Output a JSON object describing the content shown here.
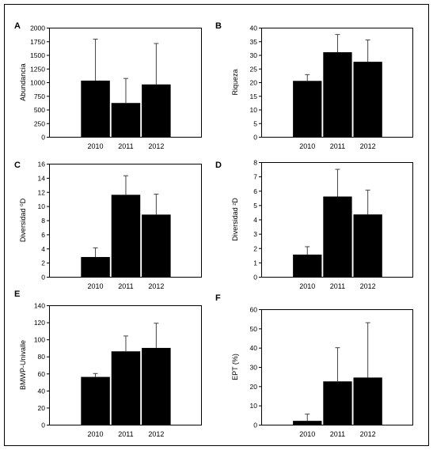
{
  "chart_data": [
    {
      "panel": "A",
      "type": "bar",
      "categories": [
        "2010",
        "2011",
        "2012"
      ],
      "values": [
        1030,
        620,
        960
      ],
      "errors": [
        760,
        450,
        750
      ],
      "ylabel": "Abundancia",
      "xlabel": "",
      "ylim": [
        0,
        2000
      ],
      "yticks": [
        "0",
        "250",
        "500",
        "750",
        "1000",
        "1250",
        "1500",
        "1750",
        "2000"
      ]
    },
    {
      "panel": "B",
      "type": "bar",
      "categories": [
        "2010",
        "2011",
        "2012"
      ],
      "values": [
        20.5,
        31,
        27.5
      ],
      "errors": [
        2.3,
        6.5,
        8
      ],
      "ylabel": "Riqueza",
      "xlabel": "",
      "ylim": [
        0,
        40
      ],
      "yticks": [
        "0",
        "5",
        "10",
        "15",
        "20",
        "25",
        "30",
        "35",
        "40"
      ]
    },
    {
      "panel": "C",
      "type": "bar",
      "categories": [
        "2010",
        "2011",
        "2012"
      ],
      "values": [
        2.8,
        11.6,
        8.8
      ],
      "errors": [
        1.3,
        2.7,
        2.9
      ],
      "ylabel": "Diversidad ⁰D",
      "xlabel": "",
      "ylim": [
        0,
        16
      ],
      "yticks": [
        "0",
        "2",
        "4",
        "6",
        "8",
        "10",
        "12",
        "14",
        "16"
      ]
    },
    {
      "panel": "D",
      "type": "bar",
      "categories": [
        "2010",
        "2011",
        "2012"
      ],
      "values": [
        1.55,
        5.6,
        4.35
      ],
      "errors": [
        0.55,
        1.9,
        1.7
      ],
      "ylabel": "Diversidad ²D",
      "xlabel": "",
      "ylim": [
        0,
        8
      ],
      "yticks": [
        "0",
        "1",
        "2",
        "3",
        "4",
        "5",
        "6",
        "7",
        "8"
      ]
    },
    {
      "panel": "E",
      "type": "bar",
      "categories": [
        "2010",
        "2011",
        "2012"
      ],
      "values": [
        56,
        86,
        90
      ],
      "errors": [
        4,
        18,
        29
      ],
      "ylabel": "BMWP-Univalle",
      "xlabel": "",
      "ylim": [
        0,
        140
      ],
      "yticks": [
        "0",
        "20",
        "40",
        "60",
        "80",
        "100",
        "120",
        "140"
      ]
    },
    {
      "panel": "F",
      "type": "bar",
      "categories": [
        "2010",
        "2011",
        "2012"
      ],
      "values": [
        2,
        22.5,
        24.5
      ],
      "errors": [
        3.5,
        17.5,
        28.5
      ],
      "ylabel": "EPT (%)",
      "xlabel": "",
      "ylim": [
        0,
        60
      ],
      "yticks": [
        "0",
        "10",
        "20",
        "30",
        "40",
        "50",
        "60"
      ]
    }
  ]
}
